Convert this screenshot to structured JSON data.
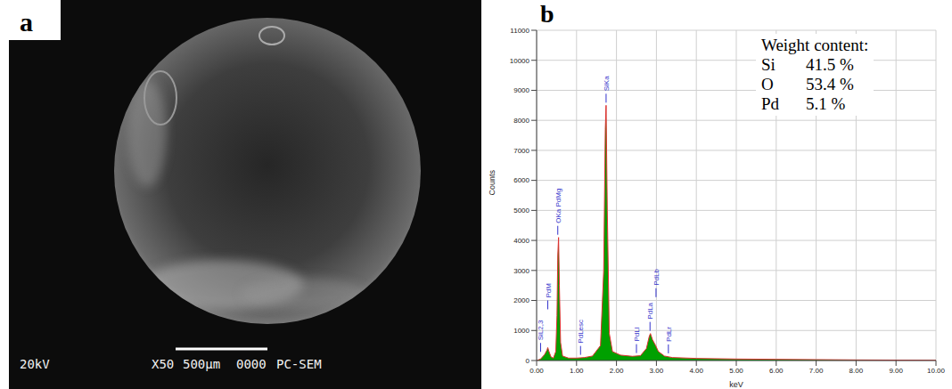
{
  "panel_a": {
    "letter": "a",
    "info": [
      "20kV",
      "X50",
      "500µm",
      "0000",
      "PC-SEM"
    ]
  },
  "chart_data": {
    "type": "area",
    "letter": "b",
    "x_label": "keV",
    "y_label": "Counts",
    "x": [
      0.0,
      0.1,
      0.2,
      0.26,
      0.28,
      0.31,
      0.36,
      0.42,
      0.48,
      0.51,
      0.53,
      0.55,
      0.57,
      0.6,
      0.65,
      0.8,
      1.0,
      1.2,
      1.4,
      1.6,
      1.68,
      1.72,
      1.74,
      1.77,
      1.82,
      1.9,
      2.1,
      2.4,
      2.6,
      2.75,
      2.82,
      2.85,
      2.9,
      2.98,
      3.05,
      3.2,
      3.4,
      4.0,
      5.0,
      6.0,
      7.0,
      8.0,
      9.0,
      10.0
    ],
    "values": [
      0,
      50,
      200,
      350,
      430,
      300,
      120,
      80,
      300,
      1500,
      3500,
      4100,
      2500,
      600,
      150,
      80,
      80,
      100,
      150,
      500,
      3000,
      7700,
      8500,
      5000,
      900,
      300,
      180,
      140,
      160,
      400,
      800,
      900,
      700,
      500,
      300,
      150,
      100,
      70,
      50,
      40,
      30,
      20,
      15,
      10
    ],
    "color": "#00a000",
    "xlim": [
      0,
      10
    ],
    "xticks": [
      {
        "value": 0,
        "label": "0.00"
      },
      {
        "value": 1,
        "label": "1.00"
      },
      {
        "value": 2,
        "label": "2.00"
      },
      {
        "value": 3,
        "label": "3.00"
      },
      {
        "value": 4,
        "label": "4.00"
      },
      {
        "value": 5,
        "label": "5.00"
      },
      {
        "value": 6,
        "label": "6.00"
      },
      {
        "value": 7,
        "label": "7.00"
      },
      {
        "value": 8,
        "label": "8.00"
      },
      {
        "value": 9,
        "label": "9.00"
      },
      {
        "value": 10,
        "label": "10.00"
      }
    ],
    "ylim": [
      0,
      11000
    ],
    "yticks": [
      0,
      1000,
      2000,
      3000,
      4000,
      5000,
      6000,
      7000,
      8000,
      9000,
      10000,
      11000
    ],
    "grid": true,
    "annotations": [
      {
        "text": "SiL2,3",
        "x": 0.1
      },
      {
        "text": "PdM",
        "x": 0.28
      },
      {
        "text": "OKa PdMg",
        "x": 0.53
      },
      {
        "text": "PdLesc",
        "x": 1.1
      },
      {
        "text": "SiKa",
        "x": 1.74
      },
      {
        "text": "PdLl",
        "x": 2.5
      },
      {
        "text": "PdLa",
        "x": 2.84
      },
      {
        "text": "PdLb",
        "x": 2.99
      },
      {
        "text": "PdLr",
        "x": 3.3
      }
    ],
    "weight_content": {
      "title": "Weight content:",
      "rows": [
        [
          "Si",
          "41.5 %"
        ],
        [
          "O",
          "53.4 %"
        ],
        [
          "Pd",
          "5.1 %"
        ]
      ]
    }
  }
}
